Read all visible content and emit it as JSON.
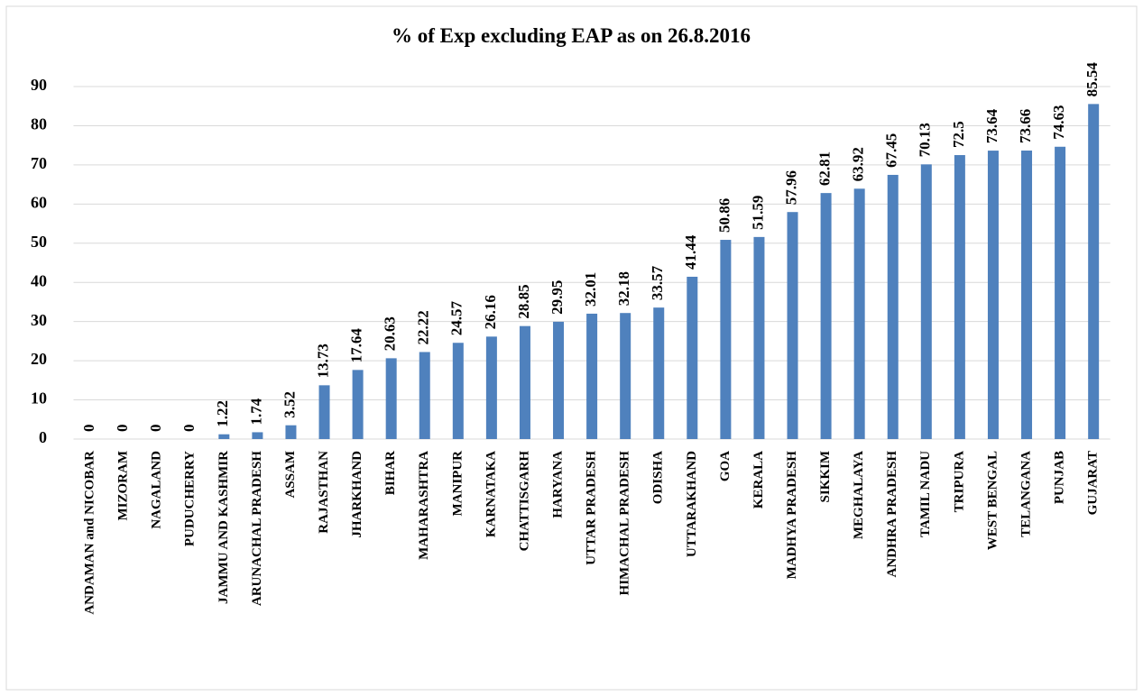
{
  "chart_data": {
    "type": "bar",
    "title": "% of Exp excluding EAP as on 26.8.2016",
    "categories": [
      "ANDAMAN and NICOBAR",
      "MIZORAM",
      "NAGALAND",
      "PUDUCHERRY",
      "JAMMU AND KASHMIR",
      "ARUNACHAL PRADESH",
      "ASSAM",
      "RAJASTHAN",
      "JHARKHAND",
      "BIHAR",
      "MAHARASHTRA",
      "MANIPUR",
      "KARNATAKA",
      "CHATTISGARH",
      "HARYANA",
      "UTTAR PRADESH",
      "HIMACHAL PRADESH",
      "ODISHA",
      "UTTARAKHAND",
      "GOA",
      "KERALA",
      "MADHYA PRADESH",
      "SIKKIM",
      "MEGHALAYA",
      "ANDHRA PRADESH",
      "TAMIL NADU",
      "TRIPURA",
      "WEST BENGAL",
      "TELANGANA",
      "PUNJAB",
      "GUJARAT"
    ],
    "values": [
      0,
      0,
      0,
      0,
      1.22,
      1.74,
      3.52,
      13.73,
      17.64,
      20.63,
      22.22,
      24.57,
      26.16,
      28.85,
      29.95,
      32.01,
      32.18,
      33.57,
      41.44,
      50.86,
      51.59,
      57.96,
      62.81,
      63.92,
      67.45,
      70.13,
      72.5,
      73.64,
      73.66,
      74.63,
      85.54
    ],
    "color": "#4f81bd",
    "ylim": [
      0,
      90
    ],
    "yticks": [
      0,
      10,
      20,
      30,
      40,
      50,
      60,
      70,
      80,
      90
    ],
    "grid": true
  }
}
